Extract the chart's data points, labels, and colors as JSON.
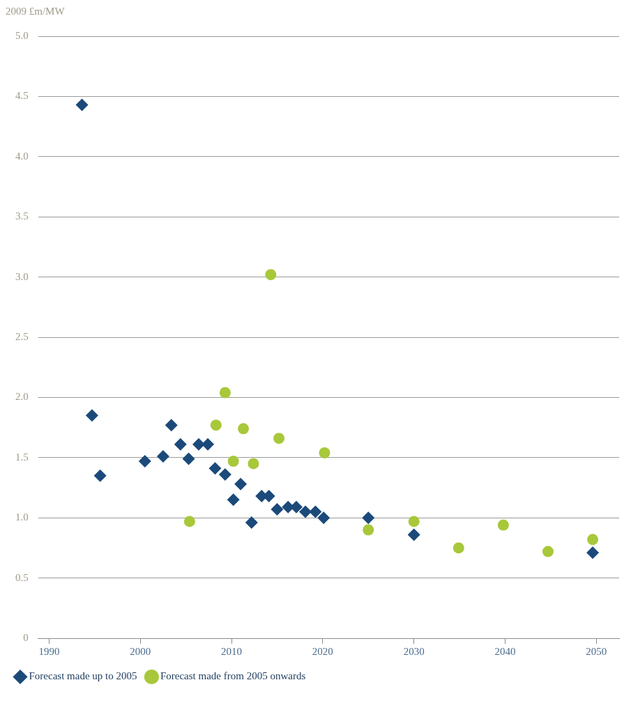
{
  "chart_data": {
    "type": "scatter",
    "ylabel": "2009 £m/MW",
    "xlim": [
      1988.8,
      2052.5
    ],
    "xticks": [
      1990,
      2000,
      2010,
      2020,
      2030,
      2040,
      2050
    ],
    "ylim": [
      0,
      5
    ],
    "yticks": [
      0,
      0.5,
      {
        "value": 1,
        "label": "1.0"
      },
      1.5,
      {
        "value": 2,
        "label": "2.0"
      },
      2.5,
      {
        "value": 3,
        "label": "3.0"
      },
      3.5,
      {
        "value": 4,
        "label": "4.0"
      },
      4.5,
      {
        "value": 5,
        "label": "5.0"
      }
    ],
    "grid": "y",
    "legend": "bottom left",
    "series": [
      {
        "name": "Forecast made up to 2005",
        "color": "#1b4a7a",
        "marker": "diamond",
        "x": [
          1993.6,
          1994.7,
          1995.6,
          2000.5,
          2002.5,
          2003.4,
          2004.4,
          2005.3,
          2006.4,
          2007.4,
          2008.2,
          2009.3,
          2010.2,
          2011.0,
          2012.2,
          2013.3,
          2014.1,
          2015.0,
          2016.2,
          2017.1,
          2018.1,
          2019.2,
          2020.1,
          2025.0,
          2030.0,
          2049.6
        ],
        "values": [
          4.43,
          1.85,
          1.35,
          1.47,
          1.51,
          1.77,
          1.61,
          1.49,
          1.61,
          1.61,
          1.41,
          1.36,
          1.15,
          1.28,
          0.96,
          1.18,
          1.18,
          1.07,
          1.09,
          1.09,
          1.05,
          1.05,
          1.0,
          1.0,
          0.86,
          0.71
        ]
      },
      {
        "name": "Forecast made from 2005 onwards",
        "color": "#a8c83a",
        "marker": "circle",
        "x": [
          2005.4,
          2008.3,
          2009.3,
          2010.2,
          2011.3,
          2012.4,
          2014.3,
          2015.2,
          2020.2,
          2025.0,
          2030.0,
          2034.9,
          2039.8,
          2044.7,
          2049.6
        ],
        "values": [
          0.97,
          1.77,
          2.04,
          1.47,
          1.74,
          1.45,
          3.02,
          1.66,
          1.54,
          0.9,
          0.97,
          0.75,
          0.94,
          0.72,
          0.82
        ]
      }
    ]
  }
}
